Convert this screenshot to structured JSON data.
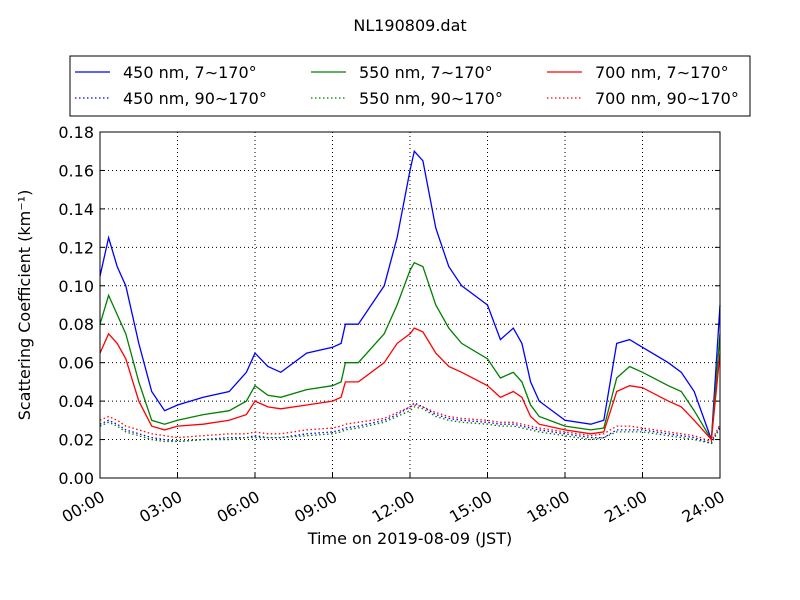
{
  "chart_data": {
    "type": "line",
    "title": "NL190809.dat",
    "xlabel": "Time on 2019-08-09 (JST)",
    "ylabel": "Scattering Coefficient (km⁻¹)",
    "x": [
      "00:00",
      "00:20",
      "00:40",
      "01:00",
      "01:30",
      "02:00",
      "02:30",
      "03:00",
      "04:00",
      "05:00",
      "05:40",
      "06:00",
      "06:30",
      "07:00",
      "08:00",
      "09:00",
      "09:20",
      "09:30",
      "10:00",
      "11:00",
      "11:30",
      "12:00",
      "12:10",
      "12:30",
      "13:00",
      "13:30",
      "14:00",
      "15:00",
      "15:30",
      "16:00",
      "16:20",
      "16:40",
      "17:00",
      "18:00",
      "19:00",
      "19:30",
      "20:00",
      "20:30",
      "21:00",
      "22:00",
      "22:30",
      "23:00",
      "23:40",
      "24:00"
    ],
    "xlim": [
      "00:00",
      "24:00"
    ],
    "xticks": [
      "00:00",
      "03:00",
      "06:00",
      "09:00",
      "12:00",
      "15:00",
      "18:00",
      "21:00",
      "24:00"
    ],
    "ylim": [
      0,
      0.18
    ],
    "yticks": [
      {
        "value": 0,
        "label": "0.00"
      },
      {
        "value": 0.02,
        "label": "0.02"
      },
      {
        "value": 0.04,
        "label": "0.04"
      },
      {
        "value": 0.06,
        "label": "0.06"
      },
      {
        "value": 0.08,
        "label": "0.08"
      },
      {
        "value": 0.1,
        "label": "0.10"
      },
      {
        "value": 0.12,
        "label": "0.12"
      },
      {
        "value": 0.14,
        "label": "0.14"
      },
      {
        "value": 0.16,
        "label": "0.16"
      },
      {
        "value": 0.18,
        "label": "0.18"
      }
    ],
    "grid": true,
    "legend": "top",
    "series": [
      {
        "name": "450 nm, 7∼170°",
        "color": "#0000ff",
        "linestyle": "solid",
        "values": [
          0.105,
          0.125,
          0.11,
          0.1,
          0.07,
          0.045,
          0.035,
          0.038,
          0.042,
          0.045,
          0.055,
          0.065,
          0.058,
          0.055,
          0.065,
          0.068,
          0.07,
          0.08,
          0.08,
          0.1,
          0.125,
          0.16,
          0.17,
          0.165,
          0.13,
          0.11,
          0.1,
          0.09,
          0.072,
          0.078,
          0.07,
          0.05,
          0.04,
          0.03,
          0.028,
          0.03,
          0.07,
          0.072,
          0.068,
          0.06,
          0.055,
          0.045,
          0.02,
          0.09
        ]
      },
      {
        "name": "450 nm, 90∼170°",
        "color": "#0000ff",
        "linestyle": "dotted",
        "values": [
          0.028,
          0.03,
          0.028,
          0.025,
          0.023,
          0.021,
          0.02,
          0.019,
          0.02,
          0.021,
          0.021,
          0.022,
          0.021,
          0.021,
          0.023,
          0.024,
          0.025,
          0.026,
          0.027,
          0.03,
          0.033,
          0.037,
          0.039,
          0.037,
          0.033,
          0.031,
          0.03,
          0.029,
          0.028,
          0.028,
          0.027,
          0.026,
          0.025,
          0.023,
          0.021,
          0.021,
          0.025,
          0.025,
          0.025,
          0.023,
          0.022,
          0.021,
          0.018,
          0.027
        ]
      },
      {
        "name": "550 nm, 7∼170°",
        "color": "#008000",
        "linestyle": "solid",
        "values": [
          0.08,
          0.095,
          0.085,
          0.075,
          0.05,
          0.03,
          0.028,
          0.03,
          0.033,
          0.035,
          0.04,
          0.048,
          0.043,
          0.042,
          0.046,
          0.048,
          0.05,
          0.06,
          0.06,
          0.075,
          0.09,
          0.108,
          0.112,
          0.11,
          0.09,
          0.078,
          0.07,
          0.062,
          0.052,
          0.055,
          0.05,
          0.038,
          0.032,
          0.027,
          0.025,
          0.026,
          0.052,
          0.058,
          0.055,
          0.048,
          0.045,
          0.035,
          0.02,
          0.075
        ]
      },
      {
        "name": "550 nm, 90∼170°",
        "color": "#008000",
        "linestyle": "dotted",
        "values": [
          0.027,
          0.029,
          0.027,
          0.024,
          0.022,
          0.02,
          0.019,
          0.019,
          0.02,
          0.02,
          0.021,
          0.021,
          0.021,
          0.021,
          0.022,
          0.023,
          0.024,
          0.025,
          0.026,
          0.029,
          0.032,
          0.035,
          0.037,
          0.036,
          0.032,
          0.03,
          0.029,
          0.028,
          0.027,
          0.027,
          0.026,
          0.025,
          0.024,
          0.022,
          0.02,
          0.021,
          0.024,
          0.024,
          0.024,
          0.022,
          0.021,
          0.02,
          0.018,
          0.026
        ]
      },
      {
        "name": "700 nm, 7∼170°",
        "color": "#ff0000",
        "linestyle": "solid",
        "values": [
          0.065,
          0.075,
          0.07,
          0.062,
          0.04,
          0.027,
          0.025,
          0.027,
          0.028,
          0.03,
          0.033,
          0.04,
          0.037,
          0.036,
          0.038,
          0.04,
          0.042,
          0.05,
          0.05,
          0.06,
          0.07,
          0.075,
          0.078,
          0.076,
          0.065,
          0.058,
          0.055,
          0.048,
          0.042,
          0.045,
          0.042,
          0.032,
          0.028,
          0.025,
          0.023,
          0.024,
          0.045,
          0.048,
          0.047,
          0.04,
          0.037,
          0.03,
          0.02,
          0.065
        ]
      },
      {
        "name": "700 nm, 90∼170°",
        "color": "#ff0000",
        "linestyle": "dotted",
        "values": [
          0.03,
          0.032,
          0.03,
          0.027,
          0.025,
          0.023,
          0.022,
          0.021,
          0.022,
          0.023,
          0.023,
          0.024,
          0.023,
          0.023,
          0.025,
          0.026,
          0.027,
          0.028,
          0.029,
          0.031,
          0.034,
          0.037,
          0.038,
          0.037,
          0.034,
          0.032,
          0.031,
          0.03,
          0.029,
          0.029,
          0.028,
          0.027,
          0.026,
          0.024,
          0.022,
          0.023,
          0.027,
          0.027,
          0.026,
          0.024,
          0.023,
          0.022,
          0.019,
          0.028
        ]
      }
    ]
  }
}
